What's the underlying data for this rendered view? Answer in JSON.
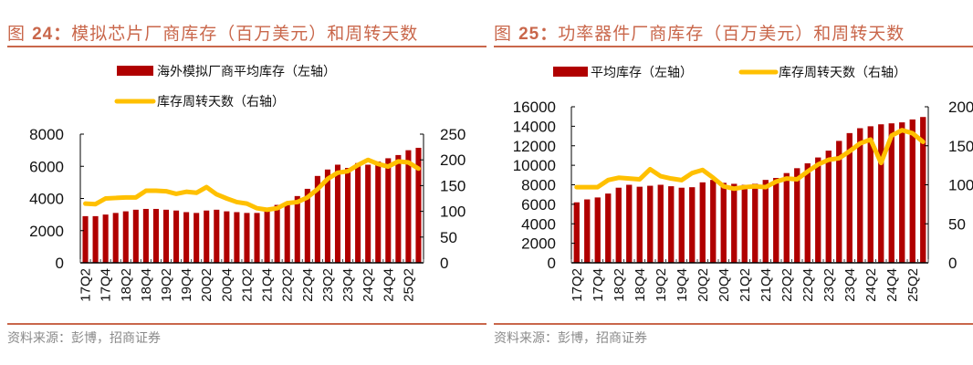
{
  "source_label": "资料来源：彭博，招商证券",
  "chart_data": [
    {
      "type": "bar+line",
      "title_prefix": "图",
      "title_number": "24：",
      "title": "模拟芯片厂商库存（百万美元）和周转天数",
      "legend": [
        {
          "label": "海外模拟厂商平均库存（左轴）",
          "kind": "bar",
          "color": "#b00000"
        },
        {
          "label": "库存周转天数（右轴）",
          "kind": "line",
          "color": "#ffc000"
        }
      ],
      "legend_layout": "stacked",
      "categories": [
        "17Q2",
        "17Q3",
        "17Q4",
        "18Q1",
        "18Q2",
        "18Q3",
        "18Q4",
        "19Q1",
        "19Q2",
        "19Q3",
        "19Q4",
        "20Q1",
        "20Q2",
        "20Q3",
        "20Q4",
        "21Q1",
        "21Q2",
        "21Q3",
        "21Q4",
        "22Q1",
        "22Q2",
        "22Q3",
        "22Q4",
        "23Q1",
        "23Q2",
        "23Q3",
        "23Q4",
        "24Q1",
        "24Q2",
        "24Q3",
        "24Q4",
        "25Q1",
        "25Q2",
        "25Q3"
      ],
      "x_tick_labels": [
        "17Q2",
        "17Q4",
        "18Q2",
        "18Q4",
        "19Q2",
        "19Q4",
        "20Q2",
        "20Q4",
        "21Q2",
        "21Q4",
        "22Q2",
        "22Q4",
        "23Q2",
        "23Q4",
        "24Q2",
        "24Q4",
        "25Q2"
      ],
      "series": [
        {
          "name": "海外模拟厂商平均库存（左轴）",
          "axis": "left",
          "type": "bar",
          "values": [
            2900,
            2900,
            3000,
            3100,
            3200,
            3300,
            3350,
            3350,
            3300,
            3250,
            3150,
            3100,
            3250,
            3300,
            3200,
            3150,
            3100,
            3100,
            3200,
            3600,
            3750,
            4150,
            4600,
            5400,
            5800,
            6100,
            5900,
            6200,
            6100,
            6300,
            6500,
            6700,
            7000,
            7150
          ]
        },
        {
          "name": "库存周转天数（右轴）",
          "axis": "right",
          "type": "line",
          "values": [
            115,
            114,
            125,
            126,
            127,
            127,
            140,
            140,
            139,
            134,
            138,
            136,
            147,
            133,
            125,
            118,
            115,
            106,
            103,
            106,
            116,
            118,
            127,
            143,
            163,
            175,
            178,
            190,
            200,
            192,
            187,
            197,
            195,
            183
          ]
        }
      ],
      "y_left": {
        "min": 0,
        "max": 8000,
        "ticks": [
          0,
          2000,
          4000,
          6000,
          8000
        ]
      },
      "y_right": {
        "min": 0,
        "max": 250,
        "ticks": [
          0,
          50,
          100,
          150,
          200,
          250
        ]
      },
      "grid": false
    },
    {
      "type": "bar+line",
      "title_prefix": "图",
      "title_number": "25：",
      "title": "功率器件厂商库存（百万美元）和周转天数",
      "legend": [
        {
          "label": "平均库存（左轴）",
          "kind": "bar",
          "color": "#b00000"
        },
        {
          "label": "库存周转天数（右轴）",
          "kind": "line",
          "color": "#ffc000"
        }
      ],
      "legend_layout": "inline",
      "categories": [
        "17Q2",
        "17Q3",
        "17Q4",
        "18Q1",
        "18Q2",
        "18Q3",
        "18Q4",
        "19Q1",
        "19Q2",
        "19Q3",
        "19Q4",
        "20Q1",
        "20Q2",
        "20Q3",
        "20Q4",
        "21Q1",
        "21Q2",
        "21Q3",
        "21Q4",
        "22Q1",
        "22Q2",
        "22Q3",
        "22Q4",
        "23Q1",
        "23Q2",
        "23Q3",
        "23Q4",
        "24Q1",
        "24Q2",
        "24Q3",
        "24Q4",
        "25Q1",
        "25Q2",
        "25Q3"
      ],
      "x_tick_labels": [
        "17Q2",
        "17Q4",
        "18Q2",
        "18Q4",
        "19Q2",
        "19Q4",
        "20Q2",
        "20Q4",
        "21Q2",
        "21Q4",
        "22Q2",
        "22Q4",
        "23Q2",
        "23Q4",
        "24Q2",
        "24Q4",
        "25Q2"
      ],
      "series": [
        {
          "name": "平均库存（左轴）",
          "axis": "left",
          "type": "bar",
          "values": [
            6200,
            6500,
            6700,
            7100,
            7700,
            8000,
            7800,
            7900,
            8000,
            7850,
            7700,
            7750,
            8250,
            8500,
            8200,
            8100,
            8000,
            8100,
            8500,
            8700,
            9200,
            9700,
            10200,
            10800,
            11500,
            12500,
            13300,
            13800,
            14000,
            14200,
            14300,
            14400,
            14700,
            14950
          ]
        },
        {
          "name": "库存周转天数（右轴）",
          "axis": "right",
          "type": "line",
          "values": [
            97,
            97,
            97,
            106,
            109,
            108,
            107,
            120,
            111,
            108,
            106,
            115,
            119,
            109,
            98,
            95,
            97,
            98,
            97,
            104,
            108,
            107,
            117,
            126,
            132,
            134,
            143,
            153,
            158,
            128,
            163,
            170,
            166,
            155
          ]
        }
      ],
      "y_left": {
        "min": 0,
        "max": 16000,
        "ticks": [
          0,
          2000,
          4000,
          6000,
          8000,
          10000,
          12000,
          14000,
          16000
        ]
      },
      "y_right": {
        "min": 0,
        "max": 200,
        "ticks": [
          0,
          50,
          100,
          150,
          200
        ]
      },
      "grid": false
    }
  ]
}
